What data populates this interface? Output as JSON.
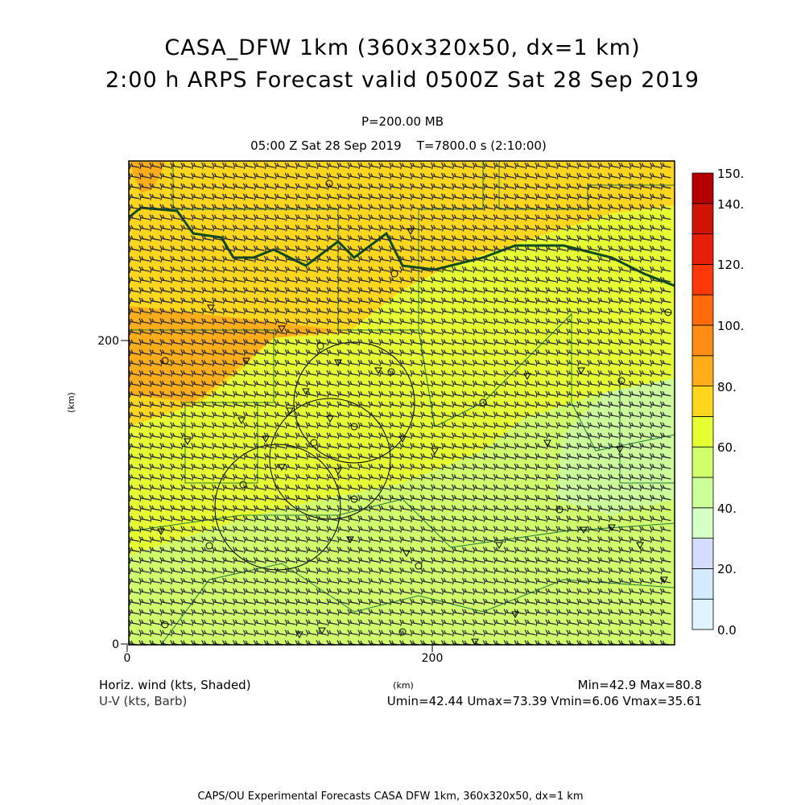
{
  "title": {
    "line1": "CASA_DFW 1km (360x320x50, dx=1 km)",
    "line2": "2:00 h ARPS Forecast valid 0500Z Sat 28 Sep 2019"
  },
  "subtitle": {
    "level": "P=200.00 MB",
    "time": "05:00 Z Sat 28 Sep 2019    T=7800.0 s (2:10:00)"
  },
  "axes": {
    "x_label": "(km)",
    "y_label": "(km)",
    "x_ticks": [
      "0",
      "200"
    ],
    "y_ticks": [
      "0",
      "200"
    ]
  },
  "colorbar": {
    "labels": [
      "150.",
      "140.",
      "120.",
      "100.",
      "80.",
      "60.",
      "40.",
      "20.",
      "0.0"
    ],
    "colors": [
      "#e0f4ff",
      "#d4ebff",
      "#d4ddff",
      "#d6ffc8",
      "#ccff99",
      "#d1ff6b",
      "#e6ff33",
      "#ffd61e",
      "#ffae1a",
      "#ff8c14",
      "#ff6a0a",
      "#ff380a",
      "#e61e0a",
      "#d01405",
      "#b40000"
    ]
  },
  "legend": {
    "shaded": "Horiz. wind (kts, Shaded)",
    "barb": "U-V (kts, Barb)",
    "minmax": "Min=42.9 Max=80.8",
    "uv_stats": "Umin=42.44 Umax=73.39 Vmin=6.06 Vmax=35.61"
  },
  "footer": "CAPS/OU Experimental Forecasts  CASA DFW 1km, 360x320x50, dx=1 km"
}
